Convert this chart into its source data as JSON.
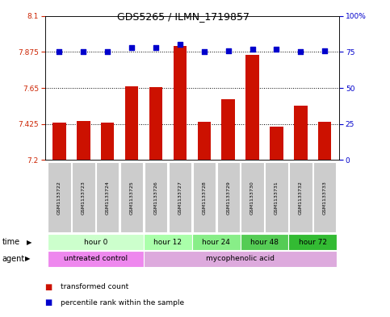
{
  "title": "GDS5265 / ILMN_1719857",
  "samples": [
    "GSM1133722",
    "GSM1133723",
    "GSM1133724",
    "GSM1133725",
    "GSM1133726",
    "GSM1133727",
    "GSM1133728",
    "GSM1133729",
    "GSM1133730",
    "GSM1133731",
    "GSM1133732",
    "GSM1133733"
  ],
  "bar_values": [
    7.435,
    7.445,
    7.432,
    7.66,
    7.655,
    7.91,
    7.44,
    7.58,
    7.855,
    7.41,
    7.54,
    7.44
  ],
  "percentile_values": [
    75,
    75,
    75,
    78,
    78,
    80,
    75,
    76,
    77,
    77,
    75,
    76
  ],
  "bar_bottom": 7.2,
  "ylim_left": [
    7.2,
    8.1
  ],
  "ylim_right": [
    0,
    100
  ],
  "yticks_left": [
    7.2,
    7.425,
    7.65,
    7.875,
    8.1
  ],
  "ytick_labels_left": [
    "7.2",
    "7.425",
    "7.65",
    "7.875",
    "8.1"
  ],
  "yticks_right": [
    0,
    25,
    50,
    75,
    100
  ],
  "ytick_labels_right": [
    "0",
    "25",
    "50",
    "75",
    "100%"
  ],
  "hlines": [
    7.425,
    7.65,
    7.875
  ],
  "bar_color": "#cc1100",
  "dot_color": "#0000cc",
  "time_groups": [
    {
      "label": "hour 0",
      "start": 0,
      "end": 4,
      "color": "#ccffcc"
    },
    {
      "label": "hour 12",
      "start": 4,
      "end": 6,
      "color": "#aaffaa"
    },
    {
      "label": "hour 24",
      "start": 6,
      "end": 8,
      "color": "#88ee88"
    },
    {
      "label": "hour 48",
      "start": 8,
      "end": 10,
      "color": "#55cc55"
    },
    {
      "label": "hour 72",
      "start": 10,
      "end": 12,
      "color": "#33bb33"
    }
  ],
  "agent_groups": [
    {
      "label": "untreated control",
      "start": 0,
      "end": 4,
      "color": "#ee88ee"
    },
    {
      "label": "mycophenolic acid",
      "start": 4,
      "end": 12,
      "color": "#ddaadd"
    }
  ],
  "legend_items": [
    {
      "label": "transformed count",
      "color": "#cc1100"
    },
    {
      "label": "percentile rank within the sample",
      "color": "#0000cc"
    }
  ],
  "bg_color": "#ffffff",
  "plot_bg": "#ffffff",
  "sample_bg": "#cccccc"
}
